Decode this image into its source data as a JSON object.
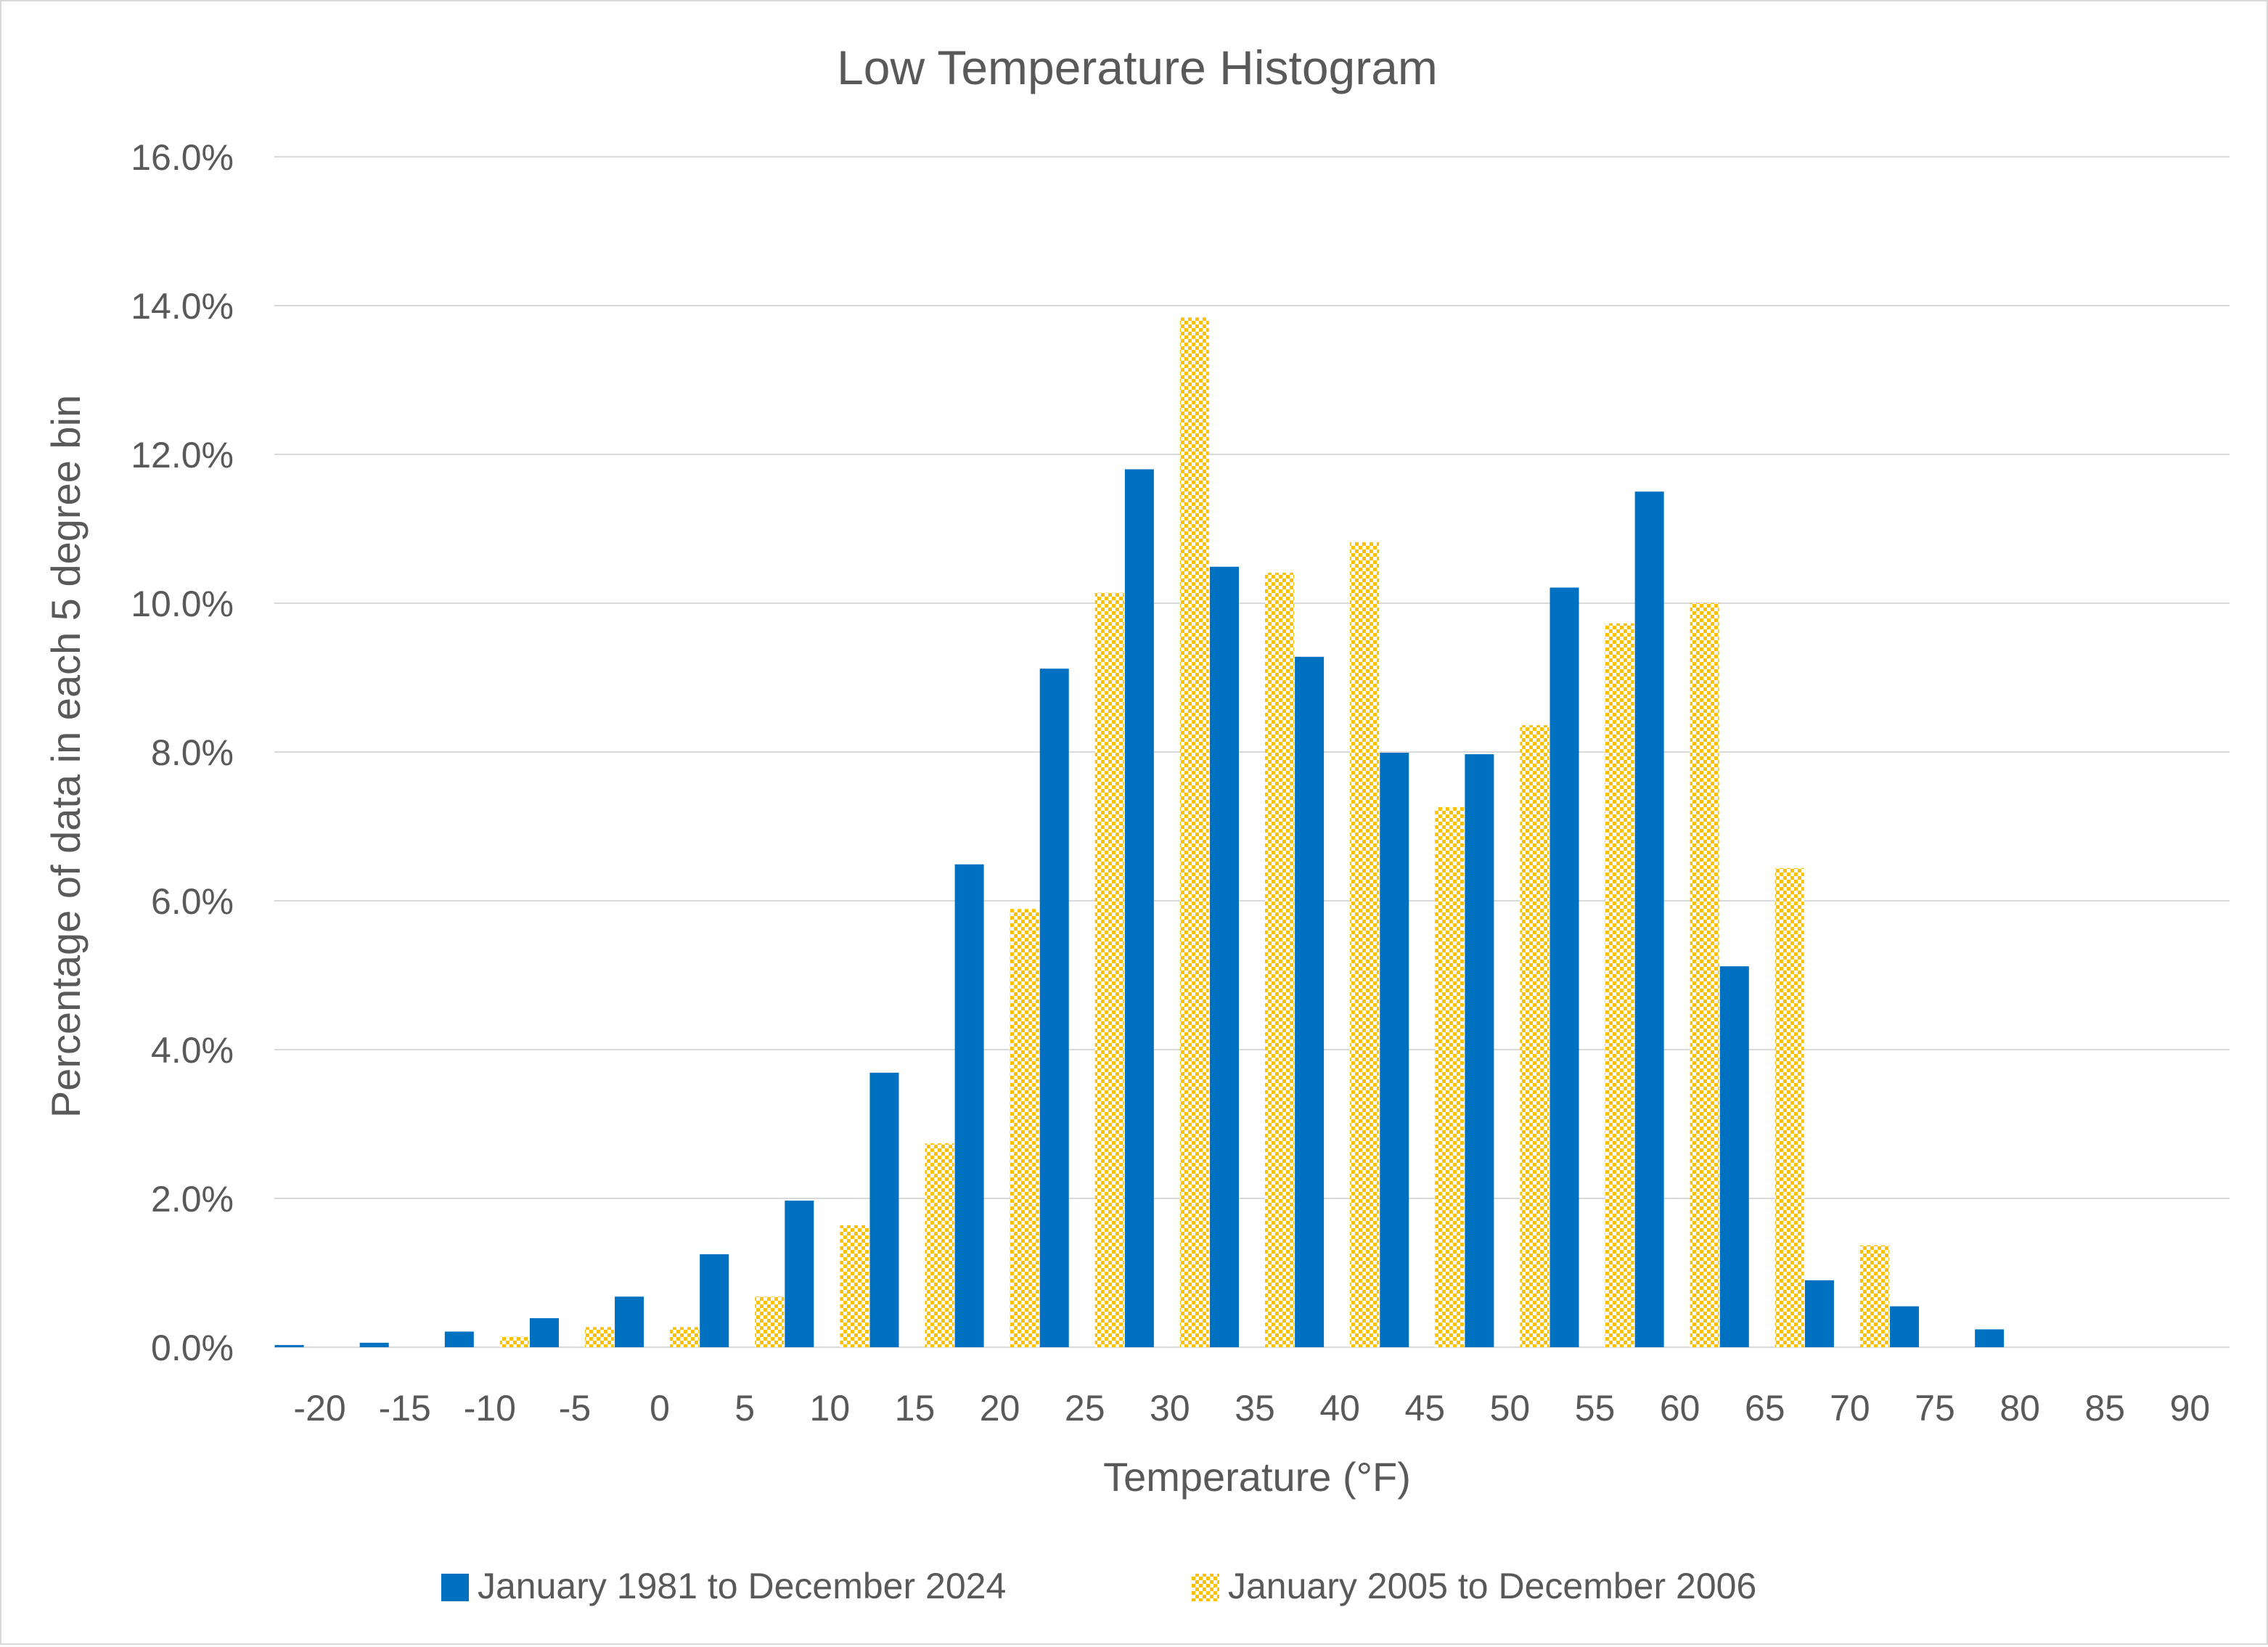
{
  "chart_data": {
    "type": "bar",
    "title": "Low Temperature Histogram",
    "xlabel": "Temperature (°F)",
    "ylabel": "Percentage of data in each 5 degree bin",
    "ylim": [
      0,
      16
    ],
    "y_ticks": [
      "0.0%",
      "2.0%",
      "4.0%",
      "6.0%",
      "8.0%",
      "10.0%",
      "12.0%",
      "14.0%",
      "16.0%"
    ],
    "y_tick_values": [
      0,
      2,
      4,
      6,
      8,
      10,
      12,
      14,
      16
    ],
    "categories": [
      "-20",
      "-15",
      "-10",
      "-5",
      "0",
      "5",
      "10",
      "15",
      "20",
      "25",
      "30",
      "35",
      "40",
      "45",
      "50",
      "55",
      "60",
      "65",
      "70",
      "75",
      "80",
      "85",
      "90"
    ],
    "grid": true,
    "legend_position": "bottom",
    "series": [
      {
        "name": "January 1981 to December 2024",
        "color": "#0070c0",
        "pattern": "solid",
        "values": [
          0.03,
          0.06,
          0.21,
          0.39,
          0.68,
          1.25,
          1.97,
          3.69,
          6.49,
          9.12,
          11.8,
          10.49,
          9.28,
          7.99,
          7.97,
          10.21,
          11.5,
          5.12,
          0.9,
          0.55,
          0.24,
          0,
          0
        ]
      },
      {
        "name": "January 2005 to December 2006",
        "color": "#ffc000",
        "pattern": "checkerboard",
        "values": [
          0,
          0,
          0.14,
          0.27,
          0.27,
          0.68,
          1.64,
          2.74,
          5.89,
          10.14,
          13.84,
          10.41,
          10.82,
          7.26,
          8.36,
          9.73,
          10.0,
          6.44,
          1.37,
          0,
          0,
          0,
          0
        ]
      }
    ]
  }
}
